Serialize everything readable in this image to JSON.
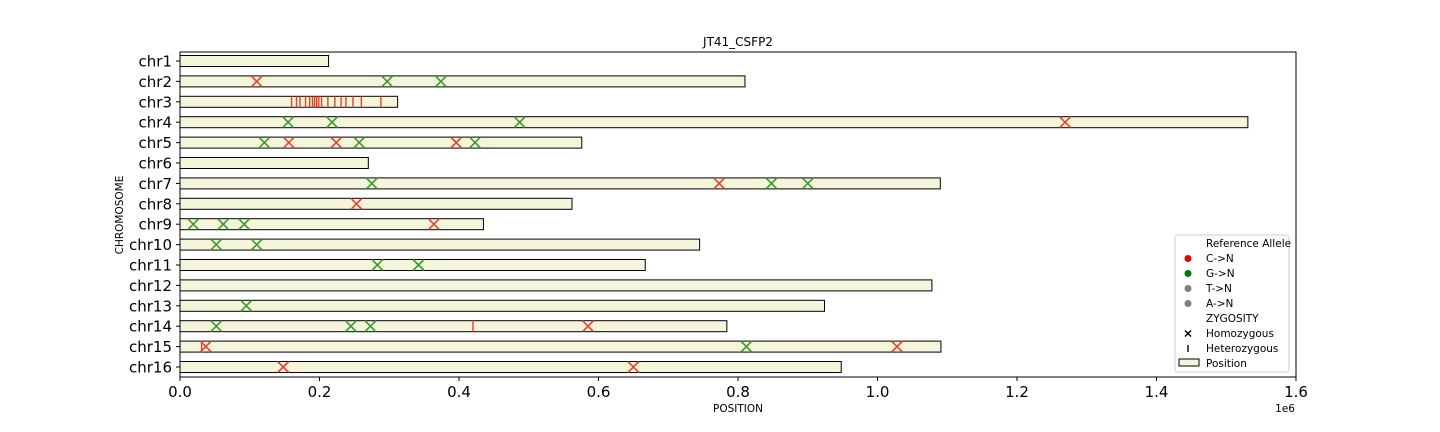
{
  "chart_data": {
    "type": "scatter",
    "title": "JT41_CSFP2",
    "xlabel": "POSITION",
    "ylabel": "CHROMOSOME",
    "xlim": [
      0,
      1600000
    ],
    "x_ticks": [
      0,
      200000,
      400000,
      600000,
      800000,
      1000000,
      1200000,
      1400000,
      1600000
    ],
    "x_tick_labels": [
      "0.0",
      "0.2",
      "0.4",
      "0.6",
      "0.8",
      "1.0",
      "1.2",
      "1.4",
      "1.6"
    ],
    "x_offset_label": "1e6",
    "grid": false,
    "legend_position": "lower-right",
    "colors": {
      "bar_fill": "#f5f5dc",
      "bar_edge": "#000000",
      "C->N": "#e8412b",
      "G->N": "#3a9a2e",
      "T->N": "#808080",
      "A->N": "#808080",
      "legend_C": "#e60000",
      "legend_G": "#007a00"
    },
    "legend": {
      "header_ref": "Reference Allele",
      "ref_items": [
        {
          "label": "C->N",
          "color": "#e60000"
        },
        {
          "label": "G->N",
          "color": "#007a00"
        },
        {
          "label": "T->N",
          "color": "#808080"
        },
        {
          "label": "A->N",
          "color": "#808080"
        }
      ],
      "header_zyg": "ZYGOSITY",
      "zyg_items": [
        {
          "label": "Homozygous",
          "marker": "x"
        },
        {
          "label": "Heterozygous",
          "marker": "|"
        }
      ],
      "bar_item": "Position"
    },
    "chromosomes": [
      {
        "name": "chr1",
        "length": 213000,
        "variants": []
      },
      {
        "name": "chr2",
        "length": 810000,
        "variants": [
          {
            "pos": 110000,
            "ref": "C",
            "zyg": "hom"
          },
          {
            "pos": 297000,
            "ref": "G",
            "zyg": "hom"
          },
          {
            "pos": 374000,
            "ref": "G",
            "zyg": "hom"
          }
        ]
      },
      {
        "name": "chr3",
        "length": 312000,
        "variants": [
          {
            "pos": 160000,
            "ref": "C",
            "zyg": "het"
          },
          {
            "pos": 167000,
            "ref": "C",
            "zyg": "het"
          },
          {
            "pos": 172000,
            "ref": "C",
            "zyg": "het"
          },
          {
            "pos": 180000,
            "ref": "C",
            "zyg": "het"
          },
          {
            "pos": 186000,
            "ref": "C",
            "zyg": "het"
          },
          {
            "pos": 190000,
            "ref": "C",
            "zyg": "het"
          },
          {
            "pos": 193000,
            "ref": "C",
            "zyg": "het"
          },
          {
            "pos": 196000,
            "ref": "C",
            "zyg": "het"
          },
          {
            "pos": 199000,
            "ref": "C",
            "zyg": "het"
          },
          {
            "pos": 203000,
            "ref": "C",
            "zyg": "het"
          },
          {
            "pos": 212000,
            "ref": "C",
            "zyg": "het"
          },
          {
            "pos": 222000,
            "ref": "C",
            "zyg": "het"
          },
          {
            "pos": 231000,
            "ref": "C",
            "zyg": "het"
          },
          {
            "pos": 238000,
            "ref": "C",
            "zyg": "het"
          },
          {
            "pos": 248000,
            "ref": "C",
            "zyg": "het"
          },
          {
            "pos": 260000,
            "ref": "C",
            "zyg": "het"
          },
          {
            "pos": 288000,
            "ref": "C",
            "zyg": "het"
          }
        ]
      },
      {
        "name": "chr4",
        "length": 1531000,
        "variants": [
          {
            "pos": 155000,
            "ref": "G",
            "zyg": "hom"
          },
          {
            "pos": 218000,
            "ref": "G",
            "zyg": "hom"
          },
          {
            "pos": 487000,
            "ref": "G",
            "zyg": "hom"
          },
          {
            "pos": 1269000,
            "ref": "C",
            "zyg": "hom"
          }
        ]
      },
      {
        "name": "chr5",
        "length": 576000,
        "variants": [
          {
            "pos": 121000,
            "ref": "G",
            "zyg": "hom"
          },
          {
            "pos": 156000,
            "ref": "C",
            "zyg": "hom"
          },
          {
            "pos": 224000,
            "ref": "C",
            "zyg": "hom"
          },
          {
            "pos": 257000,
            "ref": "G",
            "zyg": "hom"
          },
          {
            "pos": 396000,
            "ref": "C",
            "zyg": "hom"
          },
          {
            "pos": 423000,
            "ref": "G",
            "zyg": "hom"
          }
        ]
      },
      {
        "name": "chr6",
        "length": 270000,
        "variants": []
      },
      {
        "name": "chr7",
        "length": 1090000,
        "variants": [
          {
            "pos": 275000,
            "ref": "G",
            "zyg": "hom"
          },
          {
            "pos": 773000,
            "ref": "C",
            "zyg": "hom"
          },
          {
            "pos": 848000,
            "ref": "G",
            "zyg": "hom"
          },
          {
            "pos": 900000,
            "ref": "G",
            "zyg": "hom"
          }
        ]
      },
      {
        "name": "chr8",
        "length": 562000,
        "variants": [
          {
            "pos": 253000,
            "ref": "C",
            "zyg": "hom"
          }
        ]
      },
      {
        "name": "chr9",
        "length": 435000,
        "variants": [
          {
            "pos": 19000,
            "ref": "G",
            "zyg": "hom"
          },
          {
            "pos": 62000,
            "ref": "G",
            "zyg": "hom"
          },
          {
            "pos": 92000,
            "ref": "G",
            "zyg": "hom"
          },
          {
            "pos": 364000,
            "ref": "C",
            "zyg": "hom"
          }
        ]
      },
      {
        "name": "chr10",
        "length": 745000,
        "variants": [
          {
            "pos": 52000,
            "ref": "G",
            "zyg": "hom"
          },
          {
            "pos": 110000,
            "ref": "G",
            "zyg": "hom"
          }
        ]
      },
      {
        "name": "chr11",
        "length": 667000,
        "variants": [
          {
            "pos": 283000,
            "ref": "G",
            "zyg": "hom"
          },
          {
            "pos": 342000,
            "ref": "G",
            "zyg": "hom"
          }
        ]
      },
      {
        "name": "chr12",
        "length": 1078000,
        "variants": []
      },
      {
        "name": "chr13",
        "length": 924000,
        "variants": [
          {
            "pos": 95000,
            "ref": "G",
            "zyg": "hom"
          }
        ]
      },
      {
        "name": "chr14",
        "length": 784000,
        "variants": [
          {
            "pos": 52000,
            "ref": "G",
            "zyg": "hom"
          },
          {
            "pos": 245000,
            "ref": "G",
            "zyg": "hom"
          },
          {
            "pos": 273000,
            "ref": "G",
            "zyg": "hom"
          },
          {
            "pos": 420000,
            "ref": "C",
            "zyg": "het"
          },
          {
            "pos": 585000,
            "ref": "C",
            "zyg": "hom"
          }
        ]
      },
      {
        "name": "chr15",
        "length": 1091000,
        "variants": [
          {
            "pos": 31000,
            "ref": "C",
            "zyg": "het"
          },
          {
            "pos": 37000,
            "ref": "C",
            "zyg": "hom"
          },
          {
            "pos": 812000,
            "ref": "G",
            "zyg": "hom"
          },
          {
            "pos": 1028000,
            "ref": "C",
            "zyg": "hom"
          }
        ]
      },
      {
        "name": "chr16",
        "length": 948000,
        "variants": [
          {
            "pos": 148000,
            "ref": "C",
            "zyg": "hom"
          },
          {
            "pos": 650000,
            "ref": "C",
            "zyg": "hom"
          }
        ]
      }
    ]
  }
}
